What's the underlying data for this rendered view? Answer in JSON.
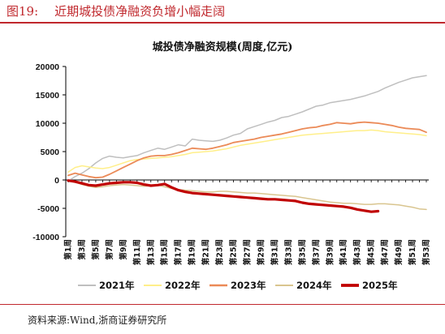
{
  "figure": {
    "number": "图19:",
    "title": "近期城投债净融资负增小幅走阔",
    "source": "资料来源:Wind,浙商证券研究所"
  },
  "chart_data": {
    "type": "line",
    "title": "城投债净融资规模(周度,亿元)",
    "xlabel": "",
    "ylabel": "",
    "ylim": [
      -10000,
      20000
    ],
    "yticks": [
      -10000,
      -5000,
      0,
      5000,
      10000,
      15000,
      20000
    ],
    "x_tick_labels": [
      "第1周",
      "第3周",
      "第5周",
      "第7周",
      "第9周",
      "第11周",
      "第13周",
      "第15周",
      "第17周",
      "第19周",
      "第21周",
      "第23周",
      "第25周",
      "第27周",
      "第29周",
      "第31周",
      "第33周",
      "第35周",
      "第37周",
      "第39周",
      "第41周",
      "第43周",
      "第45周",
      "第47周",
      "第49周",
      "第51周",
      "第53周"
    ],
    "grid": false,
    "legend_position": "bottom",
    "series": [
      {
        "name": "2021年",
        "color": "#bfbfbf",
        "width": 1.5,
        "values": [
          -200,
          600,
          1200,
          2000,
          3000,
          3800,
          4200,
          4000,
          3900,
          4100,
          4300,
          4800,
          5200,
          5600,
          5400,
          5800,
          6200,
          6000,
          7200,
          7000,
          6900,
          6800,
          7000,
          7400,
          7900,
          8200,
          9000,
          9400,
          9800,
          10200,
          10500,
          11000,
          11200,
          11600,
          12000,
          12500,
          13000,
          13200,
          13600,
          13800,
          14000,
          14200,
          14500,
          14800,
          15200,
          15600,
          16200,
          16700,
          17200,
          17600,
          18000,
          18200,
          18400
        ]
      },
      {
        "name": "2022年",
        "color": "#ffef8a",
        "width": 1.5,
        "values": [
          1400,
          2200,
          2500,
          2300,
          2100,
          2000,
          2200,
          2600,
          3000,
          3400,
          3600,
          3700,
          3800,
          3900,
          4000,
          4100,
          4300,
          4500,
          4800,
          4900,
          5000,
          5100,
          5300,
          5500,
          5800,
          6100,
          6300,
          6500,
          6700,
          6900,
          7100,
          7300,
          7500,
          7700,
          7900,
          8000,
          8100,
          8200,
          8300,
          8400,
          8500,
          8600,
          8700,
          8700,
          8800,
          8700,
          8500,
          8400,
          8300,
          8200,
          8100,
          8000,
          7800
        ]
      },
      {
        "name": "2023年",
        "color": "#eb8a57",
        "width": 1.8,
        "values": [
          800,
          1200,
          900,
          600,
          400,
          500,
          1000,
          1600,
          2200,
          2800,
          3400,
          3900,
          4200,
          4300,
          4300,
          4500,
          4800,
          5200,
          5600,
          5500,
          5400,
          5600,
          5900,
          6200,
          6600,
          6800,
          7000,
          7200,
          7500,
          7700,
          7900,
          8100,
          8400,
          8700,
          9000,
          9200,
          9300,
          9600,
          9800,
          10100,
          10000,
          9900,
          10100,
          10200,
          10100,
          10000,
          9800,
          9600,
          9300,
          9100,
          9000,
          8900,
          8400
        ]
      },
      {
        "name": "2024年",
        "color": "#d9c58f",
        "width": 1.5,
        "values": [
          -100,
          -400,
          -800,
          -1100,
          -1300,
          -1200,
          -1000,
          -900,
          -800,
          -900,
          -1000,
          -1100,
          -1000,
          -900,
          -1200,
          -1500,
          -1700,
          -1800,
          -1900,
          -2000,
          -2100,
          -2100,
          -2000,
          -2000,
          -2100,
          -2200,
          -2300,
          -2300,
          -2400,
          -2500,
          -2600,
          -2700,
          -2800,
          -2900,
          -3100,
          -3300,
          -3500,
          -3700,
          -3900,
          -4000,
          -4100,
          -4100,
          -4200,
          -4300,
          -4300,
          -4200,
          -4200,
          -4300,
          -4400,
          -4600,
          -4800,
          -5100,
          -5200
        ]
      },
      {
        "name": "2025年",
        "color": "#c00000",
        "width": 3.2,
        "values": [
          -100,
          -300,
          -600,
          -900,
          -1000,
          -800,
          -600,
          -500,
          -400,
          -400,
          -500,
          -800,
          -1000,
          -900,
          -700,
          -1300,
          -1800,
          -2100,
          -2300,
          -2400,
          -2500,
          -2600,
          -2700,
          -2800,
          -2900,
          -3000,
          -3100,
          -3200,
          -3300,
          -3400,
          -3400,
          -3500,
          -3600,
          -3700,
          -4000,
          -4200,
          -4300,
          -4400,
          -4500,
          -4600,
          -4700,
          -4900,
          -5200,
          -5400,
          -5600,
          -5500
        ]
      }
    ]
  }
}
